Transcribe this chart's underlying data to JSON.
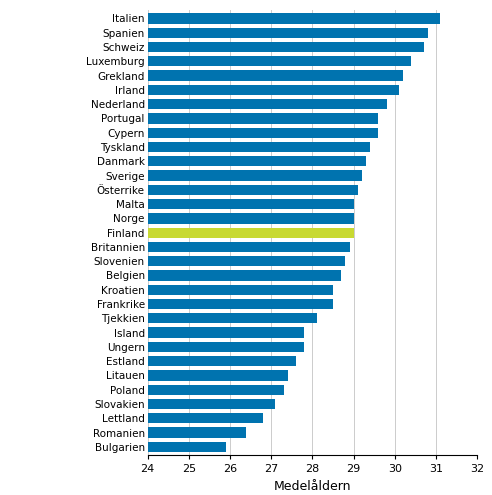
{
  "countries": [
    "Italien",
    "Spanien",
    "Schweiz",
    "Luxemburg",
    "Grekland",
    "Irland",
    "Nederland",
    "Portugal",
    "Cypern",
    "Tyskland",
    "Danmark",
    "Sverige",
    "Österrike",
    "Malta",
    "Norge",
    "Finland",
    "Britannien",
    "Slovenien",
    "Belgien",
    "Kroatien",
    "Frankrike",
    "Tjekkien",
    "Island",
    "Ungern",
    "Estland",
    "Litauen",
    "Poland",
    "Slovakien",
    "Lettland",
    "Romanien",
    "Bulgarien"
  ],
  "values": [
    31.1,
    30.8,
    30.7,
    30.4,
    30.2,
    30.1,
    29.8,
    29.6,
    29.6,
    29.4,
    29.3,
    29.2,
    29.1,
    29.0,
    29.0,
    29.0,
    28.9,
    28.8,
    28.7,
    28.5,
    28.5,
    28.1,
    27.8,
    27.8,
    27.6,
    27.4,
    27.3,
    27.1,
    26.8,
    26.4,
    25.9
  ],
  "highlight_index": 15,
  "bar_color": "#0073AF",
  "highlight_color": "#C8D932",
  "xlabel": "Medelåldern",
  "xlim": [
    24,
    32
  ],
  "xticks": [
    24,
    25,
    26,
    27,
    28,
    29,
    30,
    31,
    32
  ],
  "background_color": "#ffffff",
  "grid_color": "#cccccc",
  "bar_height": 0.72,
  "label_fontsize": 7.5,
  "xlabel_fontsize": 9,
  "xtick_fontsize": 8
}
